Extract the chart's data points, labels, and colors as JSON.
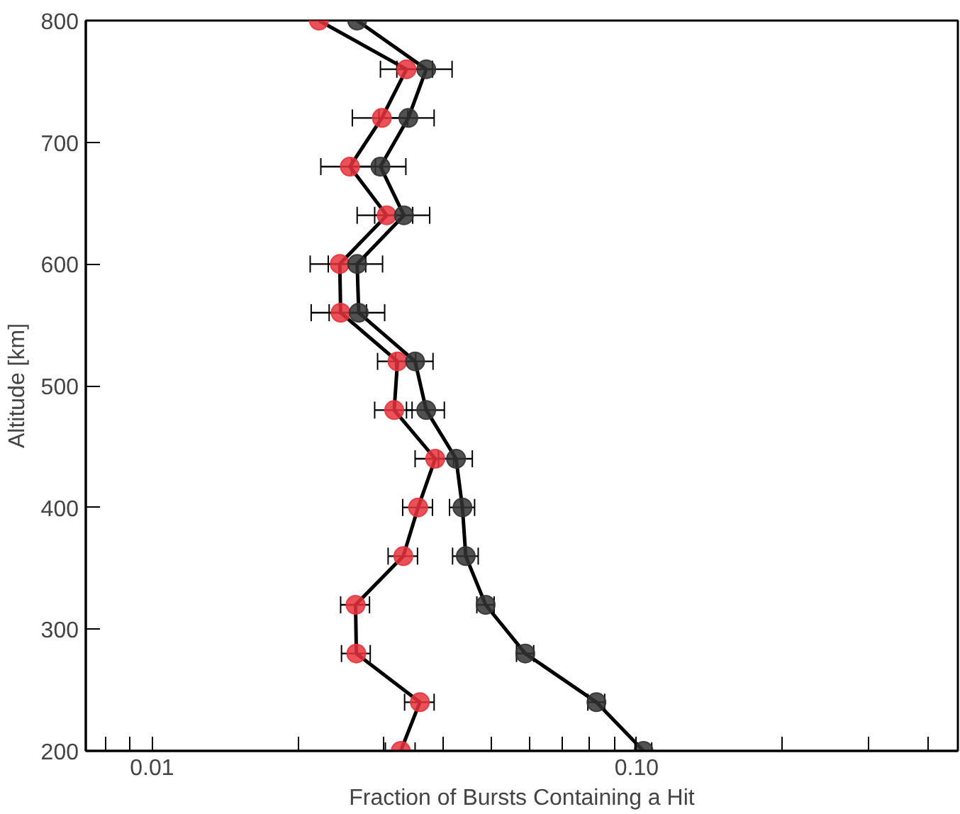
{
  "chart_data": {
    "type": "line",
    "xlabel": "Fraction of Bursts Containing a Hit",
    "ylabel": "Altitude [km]",
    "log": "x",
    "xlim": [
      0.0073,
      0.46
    ],
    "ylim": [
      200,
      800
    ],
    "xticks": [
      {
        "value": 0.008,
        "label": null
      },
      {
        "value": 0.009,
        "label": null
      },
      {
        "value": 0.01,
        "label": "0.01"
      },
      {
        "value": 0.02,
        "label": null
      },
      {
        "value": 0.03,
        "label": null
      },
      {
        "value": 0.04,
        "label": null
      },
      {
        "value": 0.05,
        "label": null
      },
      {
        "value": 0.06,
        "label": null
      },
      {
        "value": 0.07,
        "label": null
      },
      {
        "value": 0.08,
        "label": null
      },
      {
        "value": 0.09,
        "label": null
      },
      {
        "value": 0.1,
        "label": "0.10"
      },
      {
        "value": 0.2,
        "label": null
      },
      {
        "value": 0.3,
        "label": null
      },
      {
        "value": 0.4,
        "label": null
      }
    ],
    "yticks": [
      200,
      300,
      400,
      500,
      600,
      700,
      800
    ],
    "marker": "circle",
    "line_style": "solid",
    "grid": false,
    "series": [
      {
        "color": "#e8333c",
        "x": [
          0.0326,
          0.0357,
          0.0264,
          0.0263,
          0.033,
          0.0354,
          0.0384,
          0.0316,
          0.0321,
          0.0245,
          0.0244,
          0.0305,
          0.0256,
          0.0298,
          0.0335,
          0.0221
        ],
        "values": [
          200,
          240,
          280,
          320,
          360,
          400,
          440,
          480,
          520,
          560,
          600,
          640,
          680,
          720,
          760,
          800
        ],
        "xerrors": [
          [
            0.0303,
            0.0349
          ],
          [
            0.0332,
            0.0382
          ],
          [
            0.0246,
            0.0282
          ],
          [
            0.0245,
            0.0281
          ],
          [
            0.0307,
            0.0353
          ],
          [
            0.0329,
            0.0379
          ],
          [
            0.0349,
            0.0419
          ],
          [
            0.0288,
            0.0344
          ],
          [
            0.0292,
            0.035
          ],
          [
            0.0213,
            0.0277
          ],
          [
            0.0212,
            0.0276
          ],
          [
            0.0265,
            0.0345
          ],
          [
            0.0223,
            0.0289
          ],
          [
            0.0259,
            0.0337
          ],
          [
            0.0296,
            0.0379
          ],
          null
        ]
      },
      {
        "color": "#333333",
        "x": [
          0.1033,
          0.0826,
          0.0589,
          0.0488,
          0.0444,
          0.0437,
          0.0424,
          0.0368,
          0.0349,
          0.0267,
          0.0265,
          0.0331,
          0.0296,
          0.0338,
          0.0368,
          0.0265
        ],
        "values": [
          200,
          240,
          280,
          320,
          360,
          400,
          440,
          480,
          520,
          560,
          600,
          640,
          680,
          720,
          760,
          800
        ],
        "xerrors": [
          [
            0.0992,
            0.1074
          ],
          [
            0.0793,
            0.0859
          ],
          [
            0.0565,
            0.0613
          ],
          [
            0.0468,
            0.0508
          ],
          [
            0.0417,
            0.0471
          ],
          [
            0.0411,
            0.0463
          ],
          [
            0.039,
            0.0458
          ],
          [
            0.0335,
            0.0401
          ],
          [
            0.0318,
            0.038
          ],
          [
            0.0232,
            0.0302
          ],
          [
            0.0231,
            0.0299
          ],
          [
            0.0288,
            0.0374
          ],
          [
            0.0258,
            0.0334
          ],
          [
            0.0294,
            0.0382
          ],
          [
            0.032,
            0.0416
          ],
          null
        ]
      }
    ]
  }
}
